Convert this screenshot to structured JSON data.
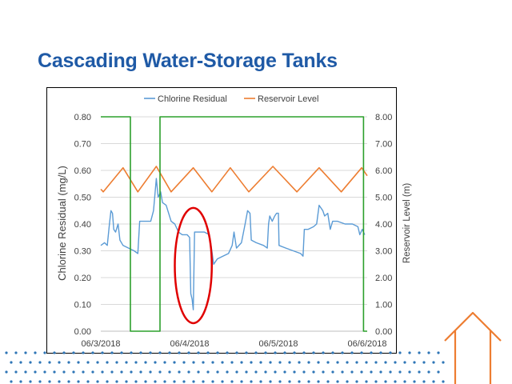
{
  "slide": {
    "title": "Cascading Water-Storage Tanks"
  },
  "colors": {
    "title": "#1f5aa6",
    "chlorine": "#5b9bd5",
    "reservoir": "#ed7d31",
    "pump": "#2ca02c",
    "annotation": "#e00000",
    "house": "#ed7d31",
    "dots": "#2e75b6"
  },
  "decorations": {
    "house_icon": "house-outline-icon",
    "dot_pattern": "dot-pattern"
  },
  "chart_data": {
    "type": "line",
    "title": "",
    "x_axis": {
      "type": "date",
      "min": "06/3/2018",
      "max": "06/6/2018",
      "tick_labels": [
        "06/3/2018",
        "06/4/2018",
        "06/5/2018",
        "06/6/2018"
      ]
    },
    "y_left": {
      "label": "Chlorine Residual (mg/L)",
      "range": [
        0,
        0.8
      ],
      "tick_labels": [
        "0.00",
        "0.10",
        "0.20",
        "0.30",
        "0.40",
        "0.50",
        "0.60",
        "0.70",
        "0.80"
      ]
    },
    "y_right": {
      "label": "Reservoir Level (m)",
      "range": [
        0,
        8
      ],
      "tick_labels": [
        "0.00",
        "1.00",
        "2.00",
        "3.00",
        "4.00",
        "5.00",
        "6.00",
        "7.00",
        "8.00"
      ]
    },
    "grid": "horizontal",
    "legend": {
      "position": "top",
      "entries": [
        "Chlorine Residual",
        "Reservoir Level"
      ]
    },
    "series": [
      {
        "name": "Chlorine Residual",
        "axis": "left",
        "points": [
          [
            "06/3/2018 00:00",
            0.32
          ],
          [
            "06/3/2018 01:00",
            0.33
          ],
          [
            "06/3/2018 01:45",
            0.32
          ],
          [
            "06/3/2018 02:20",
            0.4
          ],
          [
            "06/3/2018 02:45",
            0.45
          ],
          [
            "06/3/2018 03:10",
            0.44
          ],
          [
            "06/3/2018 03:30",
            0.38
          ],
          [
            "06/3/2018 04:00",
            0.37
          ],
          [
            "06/3/2018 04:40",
            0.4
          ],
          [
            "06/3/2018 05:10",
            0.34
          ],
          [
            "06/3/2018 06:00",
            0.32
          ],
          [
            "06/3/2018 07:30",
            0.31
          ],
          [
            "06/3/2018 09:00",
            0.3
          ],
          [
            "06/3/2018 10:00",
            0.29
          ],
          [
            "06/3/2018 10:30",
            0.41
          ],
          [
            "06/3/2018 12:00",
            0.41
          ],
          [
            "06/3/2018 13:30",
            0.41
          ],
          [
            "06/3/2018 14:15",
            0.45
          ],
          [
            "06/3/2018 15:00",
            0.57
          ],
          [
            "06/3/2018 15:30",
            0.5
          ],
          [
            "06/3/2018 16:10",
            0.52
          ],
          [
            "06/3/2018 16:40",
            0.48
          ],
          [
            "06/3/2018 17:40",
            0.47
          ],
          [
            "06/3/2018 18:20",
            0.44
          ],
          [
            "06/3/2018 19:00",
            0.41
          ],
          [
            "06/3/2018 20:00",
            0.4
          ],
          [
            "06/3/2018 21:00",
            0.37
          ],
          [
            "06/3/2018 22:00",
            0.36
          ],
          [
            "06/3/2018 23:20",
            0.36
          ],
          [
            "06/4/2018 00:00",
            0.35
          ],
          [
            "06/4/2018 00:20",
            0.14
          ],
          [
            "06/4/2018 00:40",
            0.12
          ],
          [
            "06/4/2018 01:00",
            0.08
          ],
          [
            "06/4/2018 01:20",
            0.37
          ],
          [
            "06/4/2018 02:30",
            0.37
          ],
          [
            "06/4/2018 04:00",
            0.37
          ],
          [
            "06/4/2018 05:20",
            0.36
          ],
          [
            "06/4/2018 06:00",
            0.3
          ],
          [
            "06/4/2018 06:30",
            0.25
          ],
          [
            "06/4/2018 07:30",
            0.27
          ],
          [
            "06/4/2018 09:00",
            0.28
          ],
          [
            "06/4/2018 10:30",
            0.29
          ],
          [
            "06/4/2018 11:30",
            0.32
          ],
          [
            "06/4/2018 12:00",
            0.37
          ],
          [
            "06/4/2018 12:40",
            0.31
          ],
          [
            "06/4/2018 14:00",
            0.33
          ],
          [
            "06/4/2018 15:00",
            0.4
          ],
          [
            "06/4/2018 15:40",
            0.45
          ],
          [
            "06/4/2018 16:20",
            0.44
          ],
          [
            "06/4/2018 16:40",
            0.34
          ],
          [
            "06/4/2018 18:00",
            0.33
          ],
          [
            "06/4/2018 20:00",
            0.32
          ],
          [
            "06/4/2018 21:00",
            0.31
          ],
          [
            "06/4/2018 21:20",
            0.4
          ],
          [
            "06/4/2018 21:40",
            0.43
          ],
          [
            "06/4/2018 22:20",
            0.41
          ],
          [
            "06/4/2018 23:00",
            0.43
          ],
          [
            "06/4/2018 23:30",
            0.44
          ],
          [
            "06/5/2018 00:00",
            0.44
          ],
          [
            "06/5/2018 00:10",
            0.32
          ],
          [
            "06/5/2018 02:00",
            0.31
          ],
          [
            "06/5/2018 04:00",
            0.3
          ],
          [
            "06/5/2018 06:00",
            0.29
          ],
          [
            "06/5/2018 06:40",
            0.28
          ],
          [
            "06/5/2018 07:00",
            0.38
          ],
          [
            "06/5/2018 08:00",
            0.38
          ],
          [
            "06/5/2018 09:30",
            0.39
          ],
          [
            "06/5/2018 10:20",
            0.4
          ],
          [
            "06/5/2018 11:00",
            0.47
          ],
          [
            "06/5/2018 12:00",
            0.45
          ],
          [
            "06/5/2018 12:30",
            0.43
          ],
          [
            "06/5/2018 13:20",
            0.44
          ],
          [
            "06/5/2018 14:00",
            0.38
          ],
          [
            "06/5/2018 14:40",
            0.41
          ],
          [
            "06/5/2018 16:00",
            0.41
          ],
          [
            "06/5/2018 18:00",
            0.4
          ],
          [
            "06/5/2018 20:00",
            0.4
          ],
          [
            "06/5/2018 21:30",
            0.39
          ],
          [
            "06/5/2018 22:00",
            0.36
          ],
          [
            "06/5/2018 22:40",
            0.38
          ],
          [
            "06/5/2018 23:20",
            0.36
          ]
        ]
      },
      {
        "name": "Reservoir Level",
        "axis": "right",
        "points": [
          [
            "06/3/2018 00:00",
            5.3
          ],
          [
            "06/3/2018 00:40",
            5.2
          ],
          [
            "06/3/2018 06:00",
            6.1
          ],
          [
            "06/3/2018 10:00",
            5.2
          ],
          [
            "06/3/2018 15:00",
            6.15
          ],
          [
            "06/3/2018 19:00",
            5.2
          ],
          [
            "06/4/2018 01:00",
            6.1
          ],
          [
            "06/4/2018 06:00",
            5.2
          ],
          [
            "06/4/2018 11:00",
            6.1
          ],
          [
            "06/4/2018 16:00",
            5.2
          ],
          [
            "06/4/2018 22:30",
            6.15
          ],
          [
            "06/5/2018 05:00",
            5.2
          ],
          [
            "06/5/2018 11:00",
            6.1
          ],
          [
            "06/5/2018 17:00",
            5.2
          ],
          [
            "06/5/2018 22:30",
            6.1
          ],
          [
            "06/6/2018 00:00",
            5.8
          ]
        ]
      },
      {
        "name": "",
        "axis": "right",
        "style": "step",
        "points": [
          [
            "06/3/2018 00:00",
            8
          ],
          [
            "06/3/2018 08:00",
            8
          ],
          [
            "06/3/2018 08:00",
            0
          ],
          [
            "06/3/2018 16:00",
            0
          ],
          [
            "06/3/2018 16:00",
            8
          ],
          [
            "06/5/2018 23:00",
            8
          ],
          [
            "06/5/2018 23:00",
            0
          ],
          [
            "06/6/2018 00:00",
            0
          ]
        ]
      }
    ],
    "annotations": [
      {
        "type": "ellipse",
        "label": "",
        "x_range": [
          "06/3/2018 20:00",
          "06/4/2018 06:00"
        ],
        "y_range": [
          0.03,
          0.46
        ]
      }
    ]
  }
}
